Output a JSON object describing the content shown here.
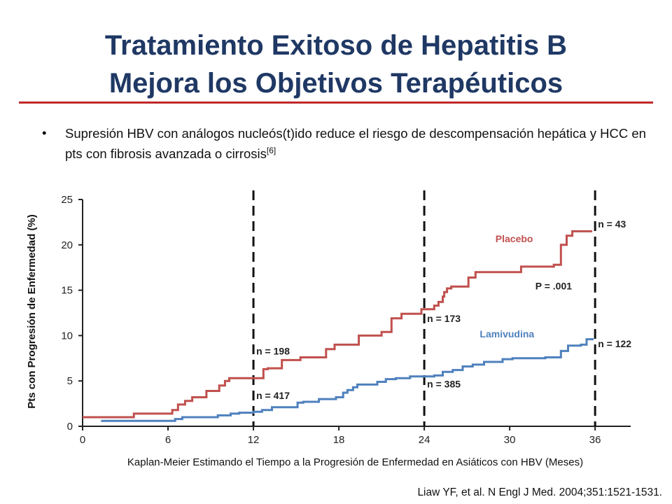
{
  "slide": {
    "title_line1": "Tratamiento Exitoso de Hepatitis B",
    "title_line2": "Mejora los Objetivos Terapéuticos",
    "bullet_main": "Supresión HBV con análogos nucleós(t)ido reduce el riesgo de descompensación hepática y HCC en pts con fibrosis avanzada o cirrosis",
    "bullet_ref": "[6]",
    "citation": "Liaw YF, et al. N Engl J Med. 2004;351:1521-1531.",
    "accent_color": "#c0282a",
    "title_color": "#1f3864"
  },
  "chart_data": {
    "type": "line",
    "title": "",
    "xlabel": "Kaplan-Meier Estimando el Tiempo a la Progresión de Enfermedad en Asiáticos con HBV (Meses)",
    "ylabel": "Pts con Progresión de Enfermedad (%)",
    "xlim": [
      0,
      38.5
    ],
    "ylim": [
      0,
      25
    ],
    "xticks": [
      0,
      6,
      12,
      18,
      24,
      30,
      36
    ],
    "yticks": [
      0,
      5,
      10,
      15,
      20,
      25
    ],
    "series": [
      {
        "name": "Placebo",
        "color": "#c0504d",
        "steps": [
          [
            0,
            1
          ],
          [
            3.6,
            1.4
          ],
          [
            6.3,
            1.8
          ],
          [
            6.7,
            2.4
          ],
          [
            7.2,
            2.8
          ],
          [
            7.7,
            3.2
          ],
          [
            8.7,
            3.9
          ],
          [
            9.6,
            4.5
          ],
          [
            10.0,
            5.0
          ],
          [
            10.3,
            5.3
          ],
          [
            12.7,
            6.3
          ],
          [
            13.0,
            6.4
          ],
          [
            14.0,
            7.3
          ],
          [
            15.3,
            7.6
          ],
          [
            17.1,
            8.5
          ],
          [
            17.7,
            9.0
          ],
          [
            19.4,
            10.0
          ],
          [
            21.0,
            10.4
          ],
          [
            21.7,
            11.9
          ],
          [
            22.4,
            12.4
          ],
          [
            23.8,
            12.9
          ],
          [
            24.7,
            13.3
          ],
          [
            25.0,
            13.7
          ],
          [
            25.3,
            14.3
          ],
          [
            25.4,
            14.8
          ],
          [
            25.6,
            15.2
          ],
          [
            25.9,
            15.4
          ],
          [
            27.1,
            16.4
          ],
          [
            27.6,
            17.0
          ],
          [
            30.8,
            17.6
          ],
          [
            33.1,
            17.8
          ],
          [
            33.6,
            20.0
          ],
          [
            34.0,
            21.0
          ],
          [
            34.4,
            21.5
          ],
          [
            35.8,
            21.5
          ]
        ]
      },
      {
        "name": "Lamivudina",
        "color": "#4f81bd",
        "steps": [
          [
            1.3,
            0.6
          ],
          [
            6.5,
            0.8
          ],
          [
            7.0,
            1.0
          ],
          [
            9.5,
            1.2
          ],
          [
            10.4,
            1.4
          ],
          [
            11.0,
            1.5
          ],
          [
            12.0,
            1.6
          ],
          [
            12.6,
            1.8
          ],
          [
            13.3,
            2.1
          ],
          [
            15.1,
            2.6
          ],
          [
            15.5,
            2.7
          ],
          [
            16.6,
            3.0
          ],
          [
            17.8,
            3.2
          ],
          [
            18.3,
            3.7
          ],
          [
            18.6,
            4.0
          ],
          [
            19.0,
            4.3
          ],
          [
            19.3,
            4.6
          ],
          [
            20.7,
            4.9
          ],
          [
            21.3,
            5.2
          ],
          [
            22.0,
            5.3
          ],
          [
            23.0,
            5.5
          ],
          [
            24.7,
            5.6
          ],
          [
            25.3,
            6.0
          ],
          [
            26.0,
            6.2
          ],
          [
            26.7,
            6.6
          ],
          [
            27.4,
            6.8
          ],
          [
            28.2,
            7.1
          ],
          [
            29.5,
            7.4
          ],
          [
            30.2,
            7.5
          ],
          [
            32.5,
            7.6
          ],
          [
            33.6,
            8.3
          ],
          [
            34.1,
            8.9
          ],
          [
            35.0,
            9.0
          ],
          [
            35.4,
            9.6
          ],
          [
            35.9,
            9.6
          ]
        ]
      }
    ],
    "vlines": [
      12,
      24,
      36
    ],
    "annotations": [
      {
        "text": "n = 198",
        "x": 12.2,
        "y": 7.9,
        "color": "#222222"
      },
      {
        "text": "n = 417",
        "x": 12.2,
        "y": 3.0,
        "color": "#222222"
      },
      {
        "text": "n = 173",
        "x": 24.2,
        "y": 11.5,
        "color": "#222222"
      },
      {
        "text": "n = 385",
        "x": 24.2,
        "y": 4.3,
        "color": "#222222"
      },
      {
        "text": "n = 43",
        "x": 36.2,
        "y": 21.9,
        "color": "#222222"
      },
      {
        "text": "n = 122",
        "x": 36.2,
        "y": 8.7,
        "color": "#222222"
      },
      {
        "text": "Placebo",
        "x": 29.0,
        "y": 20.3,
        "color": "#c0504d"
      },
      {
        "text": "P = .001",
        "x": 31.8,
        "y": 15.1,
        "color": "#222222"
      },
      {
        "text": "Lamivudina",
        "x": 27.9,
        "y": 9.8,
        "color": "#4f81bd"
      }
    ]
  }
}
